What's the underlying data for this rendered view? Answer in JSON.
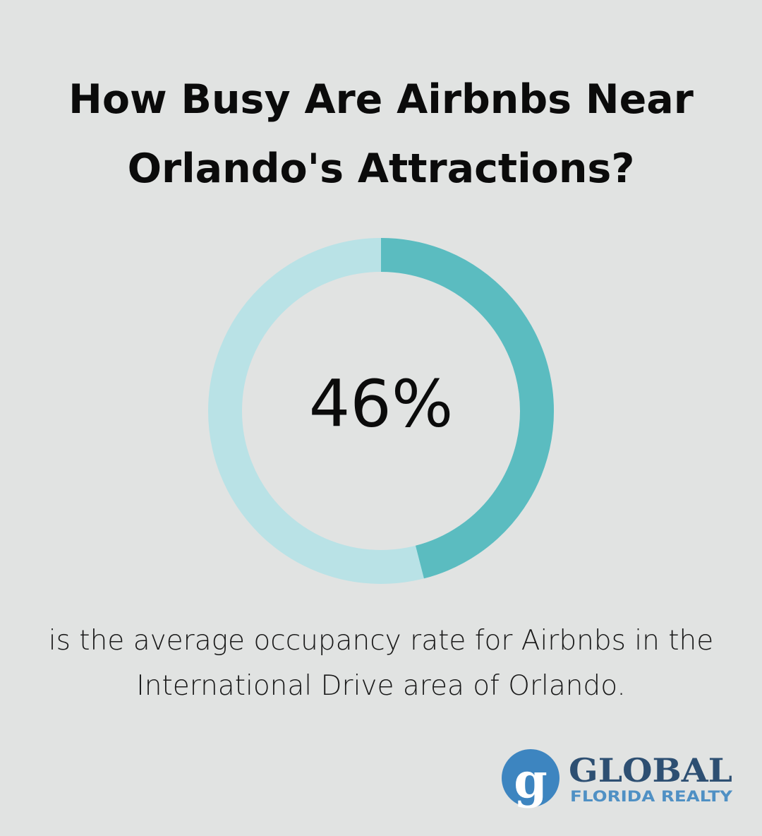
{
  "chart_data": {
    "type": "donut",
    "title": "How Busy Are Airbnbs Near Orlando's Attractions?",
    "values": [
      46
    ],
    "value_labels": [
      "46%"
    ],
    "ylim": [
      0,
      100
    ],
    "color": "#5bbcc0",
    "track_color": "#b9e2e6",
    "caption": "is the average occupancy rate for Airbnbs in the International Drive area of Orlando."
  },
  "logo": {
    "letter": "g",
    "name": "GLOBAL",
    "subtitle": "FLORIDA REALTY"
  }
}
